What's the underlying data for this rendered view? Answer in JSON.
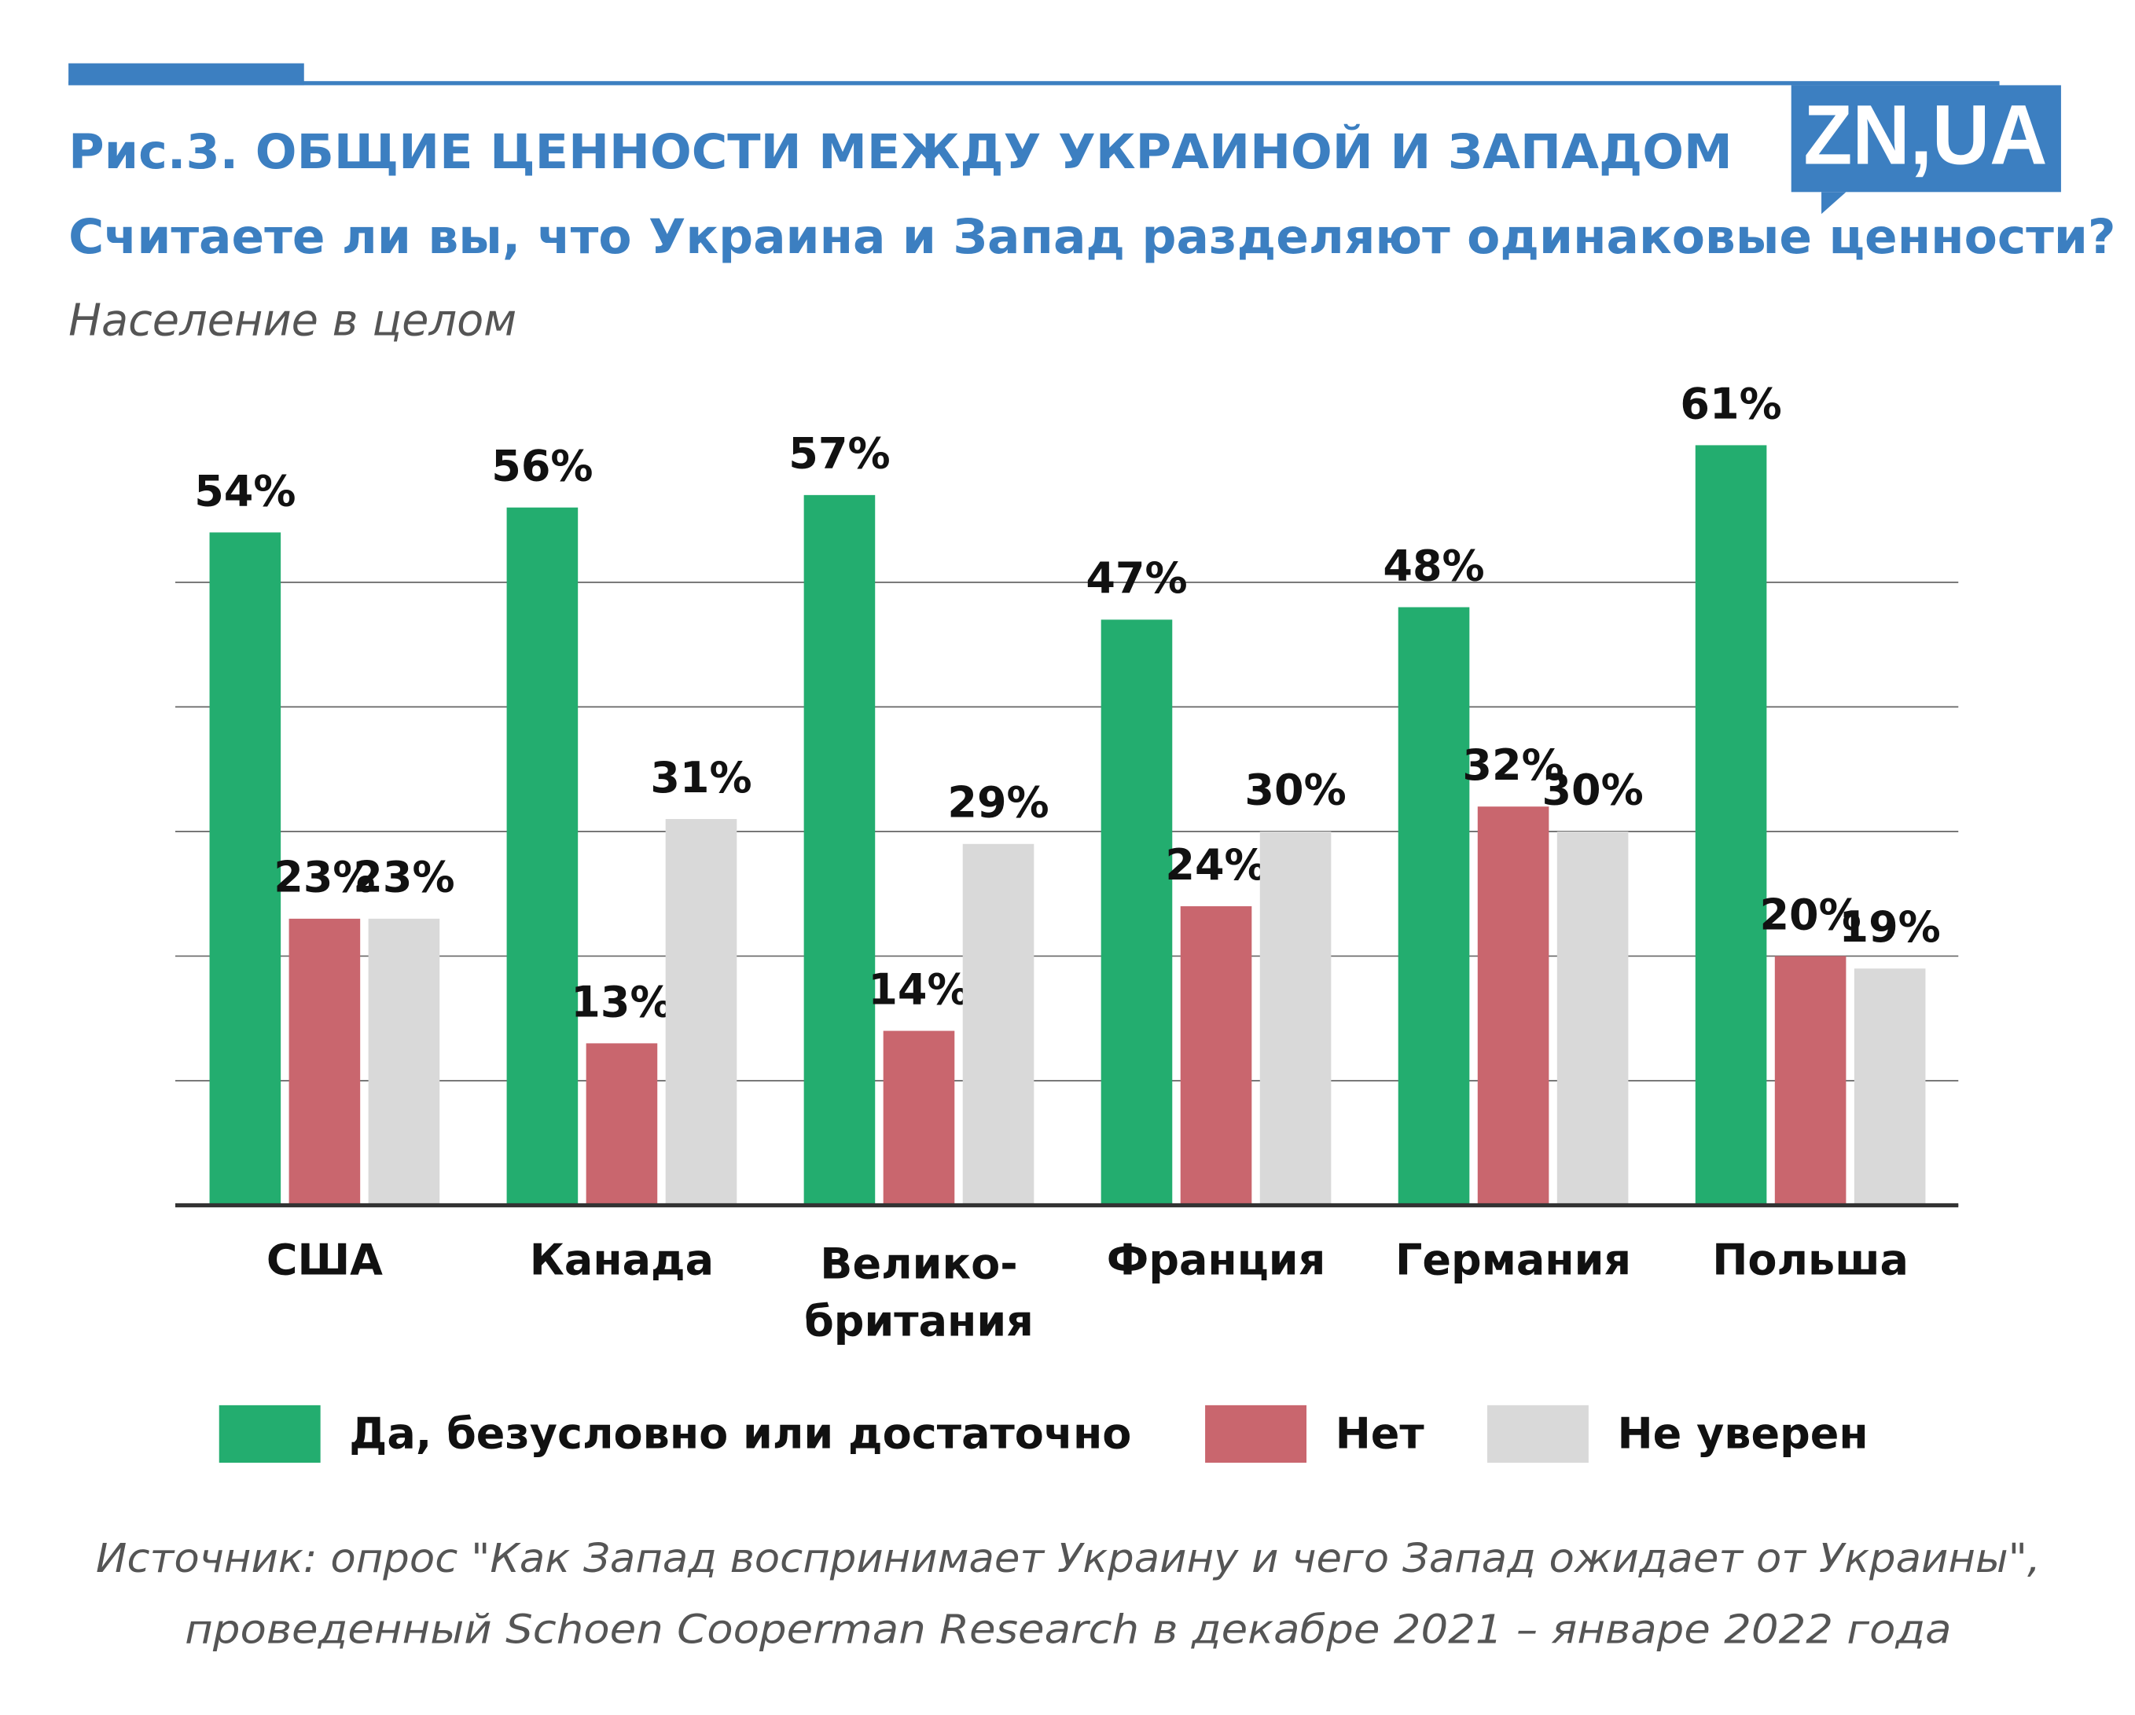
{
  "chart_data": {
    "type": "bar",
    "title": "Рис.3. ОБЩИЕ ЦЕННОСТИ МЕЖДУ УКРАИНОЙ И ЗАПАДОМ",
    "subtitle": "Считаете ли вы, что Украина и Запад разделяют одинаковые ценности?",
    "note": "Население в целом",
    "logo": "ZN,UA",
    "source": [
      "Источник: опрос \"Как Запад воспринимает Украину и чего Запад ожидает от Украины\",",
      "проведенный Schoen Cooperman Research в декабре 2021 – январе 2022 года"
    ],
    "categories": [
      "США",
      "Канада",
      [
        "Велико-",
        "британия"
      ],
      "Франция",
      "Германия",
      "Польша"
    ],
    "series": [
      {
        "name": "Да, безусловно или достаточно",
        "color": "#23ad6f",
        "values": [
          54,
          56,
          57,
          47,
          48,
          61
        ],
        "value_labels": [
          "54%",
          "56%",
          "57%",
          "47%",
          "48%",
          "61%"
        ]
      },
      {
        "name": "Нет",
        "color": "#c9666e",
        "values": [
          23,
          13,
          14,
          24,
          32,
          20
        ],
        "value_labels": [
          "23%",
          "13%",
          "14%",
          "24%",
          "32%",
          "20%"
        ]
      },
      {
        "name": "Не уверен",
        "color": "#d9d9d9",
        "values": [
          23,
          31,
          29,
          30,
          30,
          19
        ],
        "value_labels": [
          "23%",
          "31%",
          "29%",
          "30%",
          "30%",
          "19%"
        ]
      }
    ],
    "ylim": [
      0,
      66
    ],
    "yticks": [
      0,
      10,
      20,
      30,
      40,
      50
    ],
    "grid": true,
    "legend": "bottom"
  }
}
